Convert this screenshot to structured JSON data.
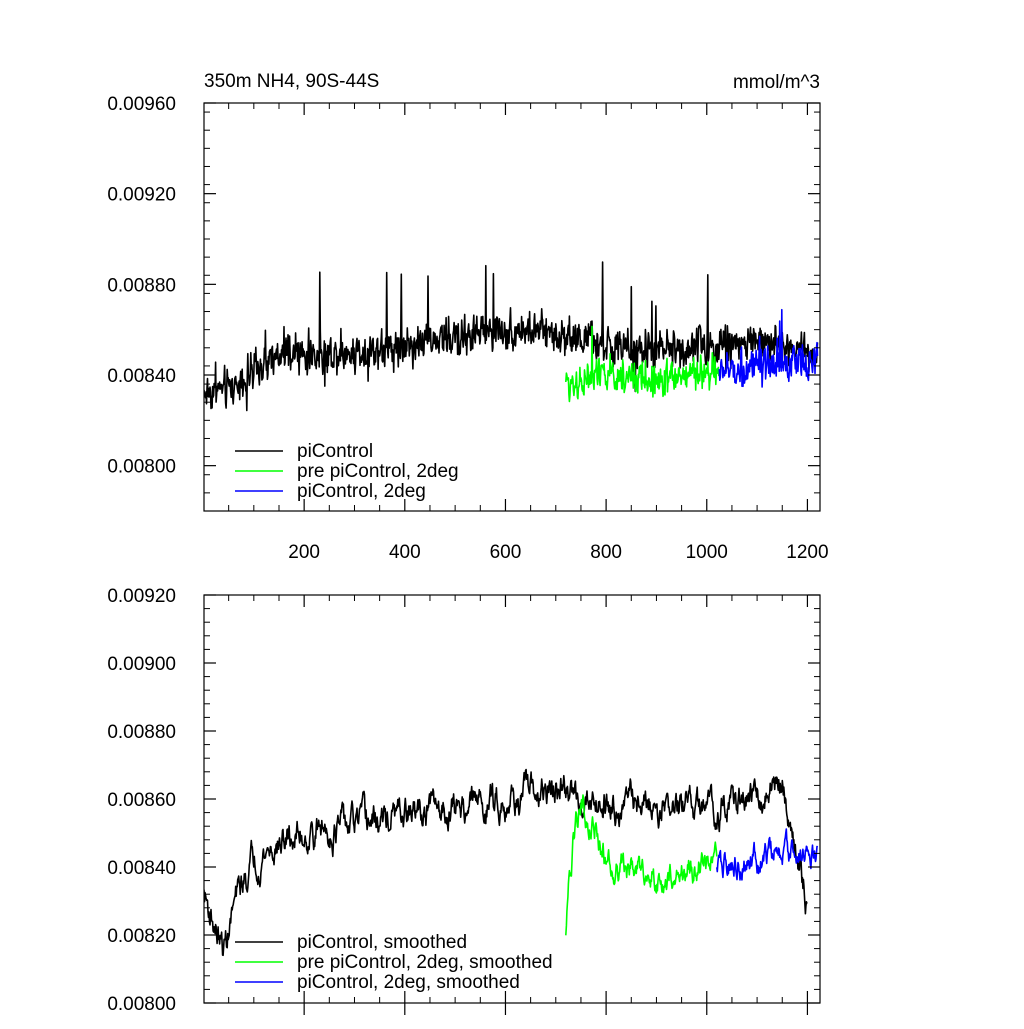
{
  "chart_data": [
    {
      "type": "line",
      "title": "350m NH4, 90S-44S",
      "units": "mmol/m^3",
      "xlim": [
        1,
        1225
      ],
      "ylim": [
        0.0078,
        0.0096
      ],
      "x_ticks": [
        200,
        400,
        600,
        800,
        1000,
        1200
      ],
      "x_tick_labels": [
        "200",
        "400",
        "600",
        "800",
        "1000",
        "1200"
      ],
      "y_ticks": [
        0.008,
        0.0084,
        0.0088,
        0.0092,
        0.0096
      ],
      "y_tick_labels": [
        "0.00800",
        "0.00840",
        "0.00880",
        "0.00920",
        "0.00960"
      ],
      "legend_position": "bottom-left",
      "series": [
        {
          "name": "piControl",
          "color": "#000000",
          "x_range": [
            1,
            1220
          ],
          "mean": 0.00848,
          "amplitude": 0.00022,
          "keypoints": [
            [
              1,
              0.00832
            ],
            [
              60,
              0.00835
            ],
            [
              150,
              0.00848
            ],
            [
              300,
              0.0085
            ],
            [
              450,
              0.00855
            ],
            [
              600,
              0.0086
            ],
            [
              720,
              0.00858
            ],
            [
              850,
              0.0085
            ],
            [
              1000,
              0.00853
            ],
            [
              1100,
              0.00855
            ],
            [
              1220,
              0.0085
            ]
          ]
        },
        {
          "name": "pre piControl, 2deg",
          "color": "#00ff00",
          "x_range": [
            720,
            1025
          ],
          "mean": 0.0084,
          "amplitude": 0.0002,
          "keypoints": [
            [
              720,
              0.00836
            ],
            [
              800,
              0.0084
            ],
            [
              900,
              0.00838
            ],
            [
              1025,
              0.00842
            ]
          ]
        },
        {
          "name": "piControl, 2deg",
          "color": "#0000ff",
          "x_range": [
            1025,
            1220
          ],
          "mean": 0.00843,
          "amplitude": 0.0002,
          "keypoints": [
            [
              1025,
              0.00842
            ],
            [
              1100,
              0.00843
            ],
            [
              1220,
              0.00846
            ]
          ]
        }
      ]
    },
    {
      "type": "line",
      "xlim": [
        1,
        1225
      ],
      "ylim": [
        0.008,
        0.0092
      ],
      "x_ticks": [
        200,
        400,
        600,
        800,
        1000,
        1200
      ],
      "y_ticks": [
        0.008,
        0.0082,
        0.0084,
        0.0086,
        0.0088,
        0.009,
        0.0092
      ],
      "y_tick_labels": [
        "0.00800",
        "0.00820",
        "0.00840",
        "0.00860",
        "0.00880",
        "0.00900",
        "0.00920"
      ],
      "legend_position": "bottom-left",
      "series": [
        {
          "name": "piControl, smoothed",
          "color": "#000000",
          "x_range": [
            1,
            1200
          ],
          "amplitude": 9e-05,
          "keypoints": [
            [
              1,
              0.00832
            ],
            [
              40,
              0.00815
            ],
            [
              60,
              0.00828
            ],
            [
              100,
              0.00843
            ],
            [
              200,
              0.0085
            ],
            [
              300,
              0.00852
            ],
            [
              400,
              0.00855
            ],
            [
              500,
              0.00858
            ],
            [
              600,
              0.0086
            ],
            [
              700,
              0.00862
            ],
            [
              800,
              0.0086
            ],
            [
              900,
              0.00858
            ],
            [
              1000,
              0.00857
            ],
            [
              1100,
              0.0086
            ],
            [
              1150,
              0.00865
            ],
            [
              1200,
              0.0083
            ]
          ]
        },
        {
          "name": "pre piControl, 2deg, smoothed",
          "color": "#00ff00",
          "x_range": [
            720,
            1020
          ],
          "amplitude": 8e-05,
          "keypoints": [
            [
              720,
              0.00822
            ],
            [
              735,
              0.00848
            ],
            [
              750,
              0.0086
            ],
            [
              800,
              0.00842
            ],
            [
              900,
              0.00838
            ],
            [
              1020,
              0.0084
            ]
          ]
        },
        {
          "name": "piControl, 2deg, smoothed",
          "color": "#0000ff",
          "x_range": [
            1020,
            1220
          ],
          "amplitude": 8e-05,
          "keypoints": [
            [
              1020,
              0.0084
            ],
            [
              1100,
              0.00842
            ],
            [
              1180,
              0.00845
            ],
            [
              1220,
              0.00842
            ]
          ]
        }
      ]
    }
  ]
}
